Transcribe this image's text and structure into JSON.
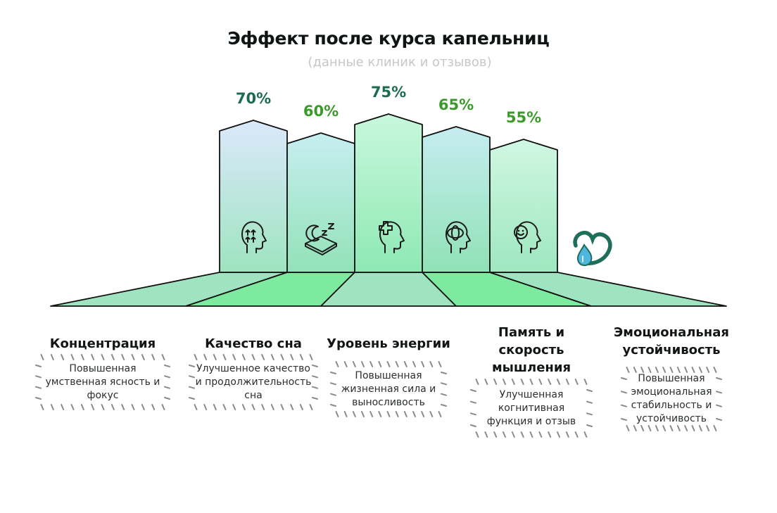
{
  "chart_data": {
    "type": "bar",
    "title": "Эффект после курса капельниц",
    "subtitle": "(данные клиник и отзывов)",
    "categories": [
      "Концентрация",
      "Качество сна",
      "Уровень энергии",
      "Память и скорость мышления",
      "Эмоциональная устойчивость"
    ],
    "values": [
      70,
      60,
      75,
      65,
      55
    ],
    "value_labels": [
      "70%",
      "60%",
      "75%",
      "65%",
      "55%"
    ],
    "label_colors": [
      "#1c6b4e",
      "#3a9a2a",
      "#1c6b4e",
      "#3a9a2a",
      "#3a9a2a"
    ],
    "icons": [
      "head-arrows-icon",
      "sleep-moon-icon",
      "head-plus-icon",
      "brain-head-icon",
      "smile-head-icon"
    ],
    "descriptions": [
      "Повышенная умственная ясность и фокус",
      "Улучшенное качество и продолжительность сна",
      "Повышенная жизненная сила и выносливость",
      "Улучшенная когнитивная функция и отзыв",
      "Повышенная эмоциональная стабильность и устойчивость"
    ],
    "ylim": [
      0,
      100
    ],
    "grid": false,
    "legend": "none"
  },
  "logo": "drop-logo-icon"
}
